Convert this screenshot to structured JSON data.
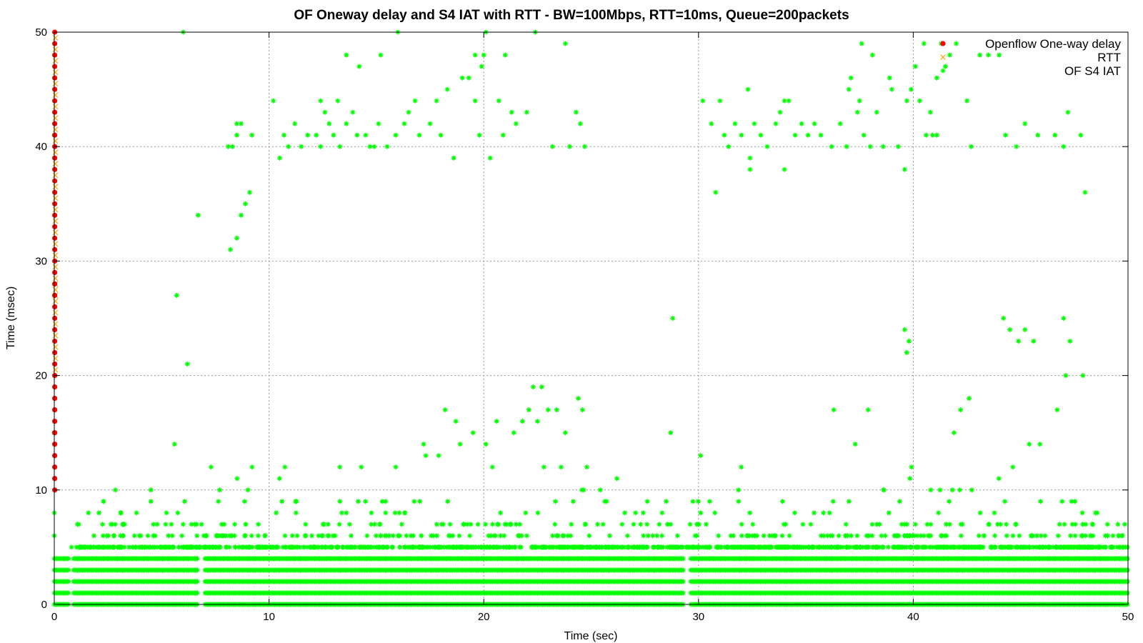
{
  "chart_data": {
    "type": "scatter",
    "title": "OF Oneway delay and S4 IAT with RTT - BW=100Mbps, RTT=10ms, Queue=200packets",
    "xlabel": "Time (sec)",
    "ylabel": "Time (msec)",
    "xlim": [
      0,
      50
    ],
    "ylim": [
      0,
      50
    ],
    "xticks": [
      0,
      10,
      20,
      30,
      40,
      50
    ],
    "yticks": [
      0,
      10,
      20,
      30,
      40,
      50
    ],
    "grid": true,
    "legend_position": "top-right",
    "series": [
      {
        "name": "Openflow One-way delay",
        "marker": "dot",
        "color": "#ff0000",
        "points": [
          [
            0.02,
            50
          ],
          [
            0.02,
            49
          ],
          [
            0.02,
            48
          ],
          [
            0.02,
            47
          ],
          [
            0.02,
            46
          ],
          [
            0.02,
            45
          ],
          [
            0.02,
            44
          ],
          [
            0.02,
            43
          ],
          [
            0.02,
            42
          ],
          [
            0.02,
            41
          ],
          [
            0.02,
            40
          ],
          [
            0.02,
            39
          ],
          [
            0.02,
            38
          ],
          [
            0.02,
            37
          ],
          [
            0.02,
            36
          ],
          [
            0.02,
            35
          ],
          [
            0.02,
            34
          ],
          [
            0.02,
            33
          ],
          [
            0.02,
            32
          ],
          [
            0.02,
            31
          ],
          [
            0.02,
            30
          ],
          [
            0.02,
            29
          ],
          [
            0.02,
            28
          ],
          [
            0.02,
            27
          ],
          [
            0.02,
            26
          ],
          [
            0.02,
            25
          ],
          [
            0.02,
            24
          ],
          [
            0.02,
            23
          ],
          [
            0.02,
            22
          ],
          [
            0.02,
            21
          ],
          [
            0.02,
            20
          ],
          [
            0.02,
            19
          ],
          [
            0.02,
            18
          ],
          [
            0.02,
            17
          ],
          [
            0.02,
            16
          ],
          [
            0.02,
            15
          ],
          [
            0.02,
            14
          ],
          [
            0.02,
            13
          ],
          [
            0.02,
            12
          ],
          [
            0.02,
            11
          ],
          [
            0.02,
            10
          ]
        ]
      },
      {
        "name": "RTT",
        "marker": "x",
        "color": "#ffa500",
        "points": [
          [
            0.05,
            49.5
          ],
          [
            0.05,
            48.5
          ],
          [
            0.05,
            47.5
          ],
          [
            0.05,
            46.5
          ],
          [
            0.05,
            45.5
          ],
          [
            0.05,
            44.5
          ],
          [
            0.05,
            43.5
          ],
          [
            0.05,
            42.5
          ],
          [
            0.05,
            41.5
          ],
          [
            0.05,
            40.5
          ],
          [
            0.05,
            39.5
          ],
          [
            0.05,
            38.5
          ],
          [
            0.05,
            37.5
          ],
          [
            0.05,
            36.5
          ],
          [
            0.05,
            35.5
          ],
          [
            0.05,
            34.5
          ],
          [
            0.05,
            33.5
          ],
          [
            0.05,
            32.5
          ],
          [
            0.05,
            31.5
          ],
          [
            0.05,
            30.5
          ],
          [
            0.05,
            29.5
          ],
          [
            0.05,
            28.5
          ],
          [
            0.05,
            28
          ],
          [
            0.05,
            27.5
          ],
          [
            0.05,
            27
          ],
          [
            0.05,
            26.5
          ],
          [
            0.05,
            25.5
          ],
          [
            0.05,
            24.5
          ],
          [
            0.05,
            23.5
          ],
          [
            0.05,
            22.5
          ],
          [
            0.05,
            21.5
          ],
          [
            0.05,
            20.5
          ]
        ]
      },
      {
        "name": "OF S4 IAT",
        "marker": "asterisk",
        "color": "#00ff00",
        "bands": [
          0,
          1,
          2,
          3,
          4
        ],
        "band_x_range": [
          0,
          50
        ],
        "band_gaps": [
          [
            0.7,
            0.9
          ],
          [
            6.7,
            7.0
          ],
          [
            29.3,
            29.6
          ]
        ],
        "points": [
          [
            0,
            6
          ],
          [
            0,
            8
          ],
          [
            0,
            15
          ],
          [
            0,
            41
          ],
          [
            0.8,
            5
          ],
          [
            2.3,
            5
          ],
          [
            2.7,
            7
          ],
          [
            2.8,
            5
          ],
          [
            3.8,
            5
          ],
          [
            4.5,
            10
          ],
          [
            4.5,
            9
          ],
          [
            4.6,
            5
          ],
          [
            4.7,
            6
          ],
          [
            5.6,
            14
          ],
          [
            5.7,
            27
          ],
          [
            5.8,
            5
          ],
          [
            6.0,
            7
          ],
          [
            6.0,
            50
          ],
          [
            6.2,
            21
          ],
          [
            6.2,
            5
          ],
          [
            6.7,
            34
          ],
          [
            7.2,
            5
          ],
          [
            7.3,
            12
          ],
          [
            7.7,
            10
          ],
          [
            7.8,
            7
          ],
          [
            7.9,
            6
          ],
          [
            8.1,
            40
          ],
          [
            8.2,
            31
          ],
          [
            8.3,
            40
          ],
          [
            8.4,
            7
          ],
          [
            8.5,
            32
          ],
          [
            8.5,
            41
          ],
          [
            8.5,
            42
          ],
          [
            8.7,
            42
          ],
          [
            8.7,
            34
          ],
          [
            8.9,
            35
          ],
          [
            9.1,
            36
          ],
          [
            9.2,
            41
          ],
          [
            9.5,
            7
          ],
          [
            9.8,
            6
          ],
          [
            10.2,
            44
          ],
          [
            10.5,
            39
          ],
          [
            10.6,
            9
          ],
          [
            10.7,
            41
          ],
          [
            10.9,
            40
          ],
          [
            11.2,
            42
          ],
          [
            11.5,
            40
          ],
          [
            11.8,
            41
          ],
          [
            12.2,
            41
          ],
          [
            12.4,
            40
          ],
          [
            12.4,
            44
          ],
          [
            12.6,
            43
          ],
          [
            12.8,
            42
          ],
          [
            13.0,
            41
          ],
          [
            13.2,
            44
          ],
          [
            13.3,
            40
          ],
          [
            13.3,
            9
          ],
          [
            13.6,
            42
          ],
          [
            13.6,
            48
          ],
          [
            13.9,
            43
          ],
          [
            14.1,
            41
          ],
          [
            14.2,
            47
          ],
          [
            14.5,
            41
          ],
          [
            14.7,
            40
          ],
          [
            14.9,
            40
          ],
          [
            15.1,
            42
          ],
          [
            15.2,
            48
          ],
          [
            15.5,
            40
          ],
          [
            15.9,
            41
          ],
          [
            15.9,
            12
          ],
          [
            16.0,
            50
          ],
          [
            16.3,
            42
          ],
          [
            16.5,
            43
          ],
          [
            16.8,
            44
          ],
          [
            17.0,
            41
          ],
          [
            17.2,
            14
          ],
          [
            17.3,
            13
          ],
          [
            17.5,
            42
          ],
          [
            17.8,
            44
          ],
          [
            17.9,
            13
          ],
          [
            18.0,
            41
          ],
          [
            18.2,
            17
          ],
          [
            18.3,
            45
          ],
          [
            18.6,
            39
          ],
          [
            18.7,
            16
          ],
          [
            18.9,
            14
          ],
          [
            19.0,
            46
          ],
          [
            19.3,
            46
          ],
          [
            19.5,
            15
          ],
          [
            19.6,
            48
          ],
          [
            19.6,
            44
          ],
          [
            19.8,
            41
          ],
          [
            19.9,
            47
          ],
          [
            20.0,
            48
          ],
          [
            20.1,
            50
          ],
          [
            20.1,
            14
          ],
          [
            20.3,
            39
          ],
          [
            20.4,
            12
          ],
          [
            20.6,
            16
          ],
          [
            20.7,
            44
          ],
          [
            20.9,
            41
          ],
          [
            21.0,
            48
          ],
          [
            21.3,
            43
          ],
          [
            21.4,
            15
          ],
          [
            21.5,
            42
          ],
          [
            21.8,
            16
          ],
          [
            22.0,
            43
          ],
          [
            22.1,
            17
          ],
          [
            22.3,
            19
          ],
          [
            22.4,
            50
          ],
          [
            22.5,
            16
          ],
          [
            22.7,
            19
          ],
          [
            22.8,
            12
          ],
          [
            23.0,
            17
          ],
          [
            23.2,
            40
          ],
          [
            23.4,
            17
          ],
          [
            23.6,
            12
          ],
          [
            23.8,
            15
          ],
          [
            23.8,
            49
          ],
          [
            24.0,
            40
          ],
          [
            24.3,
            43
          ],
          [
            24.4,
            18
          ],
          [
            24.5,
            42
          ],
          [
            24.6,
            17
          ],
          [
            24.7,
            40
          ],
          [
            24.8,
            12
          ],
          [
            28.7,
            15
          ],
          [
            28.8,
            25
          ],
          [
            30.1,
            13
          ],
          [
            30.2,
            44
          ],
          [
            30.6,
            42
          ],
          [
            30.8,
            36
          ],
          [
            31.0,
            44
          ],
          [
            31.2,
            41
          ],
          [
            31.4,
            40
          ],
          [
            31.7,
            42
          ],
          [
            32.0,
            41
          ],
          [
            32.3,
            45
          ],
          [
            32.4,
            38
          ],
          [
            32.4,
            39
          ],
          [
            32.6,
            42
          ],
          [
            32.9,
            41
          ],
          [
            33.2,
            40
          ],
          [
            33.6,
            42
          ],
          [
            33.8,
            43
          ],
          [
            34.0,
            44
          ],
          [
            34.0,
            38
          ],
          [
            34.2,
            44
          ],
          [
            34.5,
            41
          ],
          [
            34.8,
            42
          ],
          [
            35.1,
            41
          ],
          [
            35.4,
            42
          ],
          [
            35.7,
            41
          ],
          [
            36.2,
            40
          ],
          [
            36.3,
            17
          ],
          [
            36.6,
            42
          ],
          [
            36.9,
            40
          ],
          [
            37.0,
            45
          ],
          [
            37.1,
            46
          ],
          [
            37.3,
            14
          ],
          [
            37.4,
            43
          ],
          [
            37.5,
            44
          ],
          [
            37.6,
            49
          ],
          [
            37.7,
            41
          ],
          [
            37.9,
            17
          ],
          [
            38.0,
            40
          ],
          [
            38.1,
            48
          ],
          [
            38.3,
            43
          ],
          [
            38.6,
            40
          ],
          [
            38.9,
            46
          ],
          [
            39.0,
            45
          ],
          [
            39.3,
            40
          ],
          [
            39.6,
            24
          ],
          [
            39.6,
            38
          ],
          [
            39.7,
            22
          ],
          [
            39.7,
            44
          ],
          [
            39.8,
            23
          ],
          [
            39.9,
            45
          ],
          [
            40.1,
            47
          ],
          [
            40.3,
            44
          ],
          [
            40.5,
            49
          ],
          [
            40.6,
            41
          ],
          [
            40.8,
            43
          ],
          [
            40.9,
            41
          ],
          [
            41.1,
            41
          ],
          [
            41.1,
            46
          ],
          [
            41.3,
            49
          ],
          [
            41.5,
            47
          ],
          [
            41.7,
            48
          ],
          [
            41.9,
            15
          ],
          [
            42.0,
            49
          ],
          [
            42.2,
            17
          ],
          [
            42.5,
            44
          ],
          [
            42.6,
            18
          ],
          [
            42.7,
            40
          ],
          [
            43.1,
            48
          ],
          [
            43.5,
            48
          ],
          [
            44.0,
            48
          ],
          [
            44.2,
            25
          ],
          [
            44.3,
            41
          ],
          [
            44.5,
            24
          ],
          [
            44.8,
            40
          ],
          [
            44.9,
            23
          ],
          [
            45.2,
            24
          ],
          [
            45.2,
            42
          ],
          [
            45.4,
            14
          ],
          [
            45.6,
            23
          ],
          [
            45.8,
            41
          ],
          [
            45.9,
            14
          ],
          [
            46.6,
            41
          ],
          [
            46.7,
            17
          ],
          [
            47.0,
            40
          ],
          [
            47.0,
            25
          ],
          [
            47.1,
            20
          ],
          [
            47.2,
            43
          ],
          [
            47.3,
            23
          ],
          [
            47.8,
            41
          ],
          [
            47.9,
            20
          ],
          [
            48.0,
            36
          ]
        ],
        "seed_clusters": [
          {
            "x_range": [
              1.0,
              50
            ],
            "y_values": [
              5,
              6,
              7,
              8,
              9,
              10,
              11,
              12
            ]
          }
        ]
      }
    ]
  }
}
